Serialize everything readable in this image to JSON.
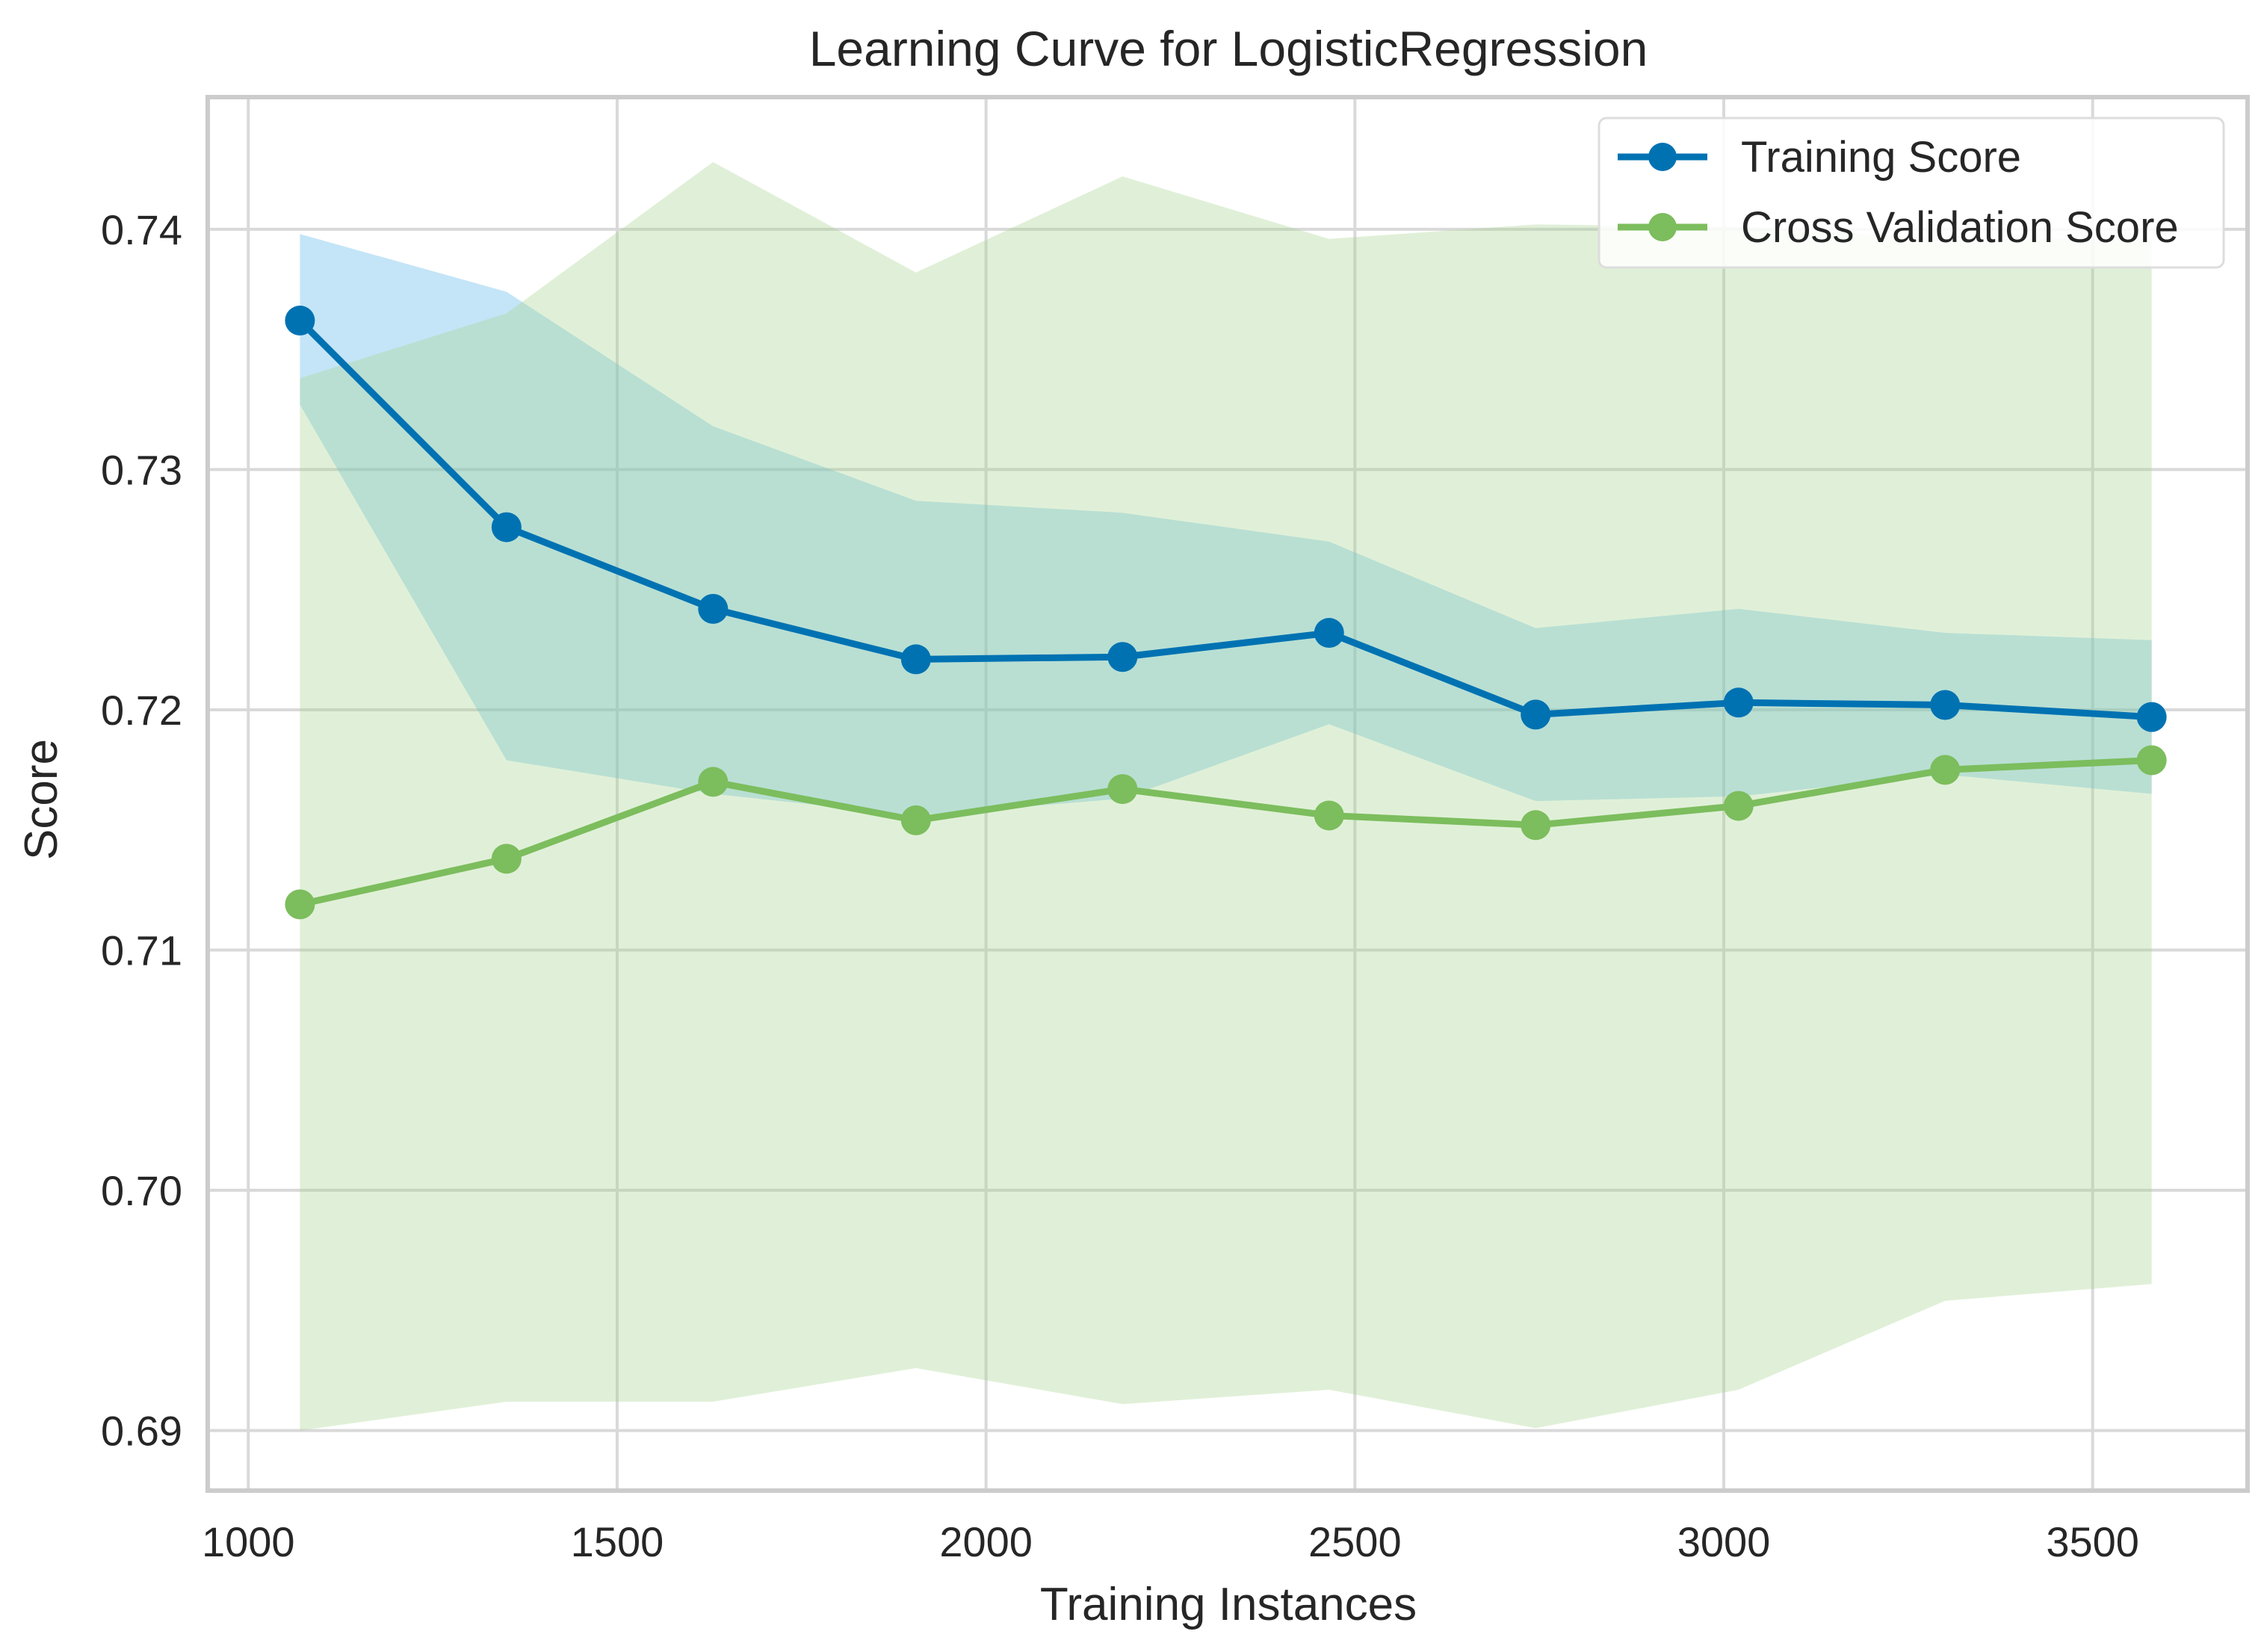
{
  "chart_data": {
    "type": "line",
    "title": "Learning Curve for LogisticRegression",
    "xlabel": "Training Instances",
    "ylabel": "Score",
    "xlim": [
      945,
      3710
    ],
    "ylim": [
      0.6875,
      0.7455
    ],
    "xticks": [
      1000,
      1500,
      2000,
      2500,
      3000,
      3500
    ],
    "xtick_labels": [
      "1000",
      "1500",
      "2000",
      "2500",
      "3000",
      "3500"
    ],
    "yticks": [
      0.69,
      0.7,
      0.71,
      0.72,
      0.73,
      0.74
    ],
    "ytick_labels": [
      "0.69",
      "0.70",
      "0.71",
      "0.72",
      "0.73",
      "0.74"
    ],
    "grid": true,
    "legend_position": "top-right",
    "x": [
      1070,
      1350,
      1630,
      1905,
      2185,
      2465,
      2745,
      3020,
      3300,
      3580
    ],
    "series": [
      {
        "name": "Training Score",
        "color": "#0072b2",
        "band_color": "#56b4e9",
        "values": [
          0.7362,
          0.7276,
          0.7242,
          0.7221,
          0.7222,
          0.7232,
          0.7198,
          0.7203,
          0.7202,
          0.7197
        ],
        "lower": [
          0.7327,
          0.7179,
          0.7165,
          0.7156,
          0.7163,
          0.7194,
          0.7162,
          0.7164,
          0.7173,
          0.7165
        ],
        "upper": [
          0.7398,
          0.7374,
          0.7318,
          0.7287,
          0.7282,
          0.727,
          0.7234,
          0.7242,
          0.7232,
          0.7229
        ]
      },
      {
        "name": "Cross Validation Score",
        "color": "#7cbd5d",
        "band_color": "#a6d48f",
        "values": [
          0.7119,
          0.7138,
          0.717,
          0.7154,
          0.7167,
          0.7156,
          0.7152,
          0.716,
          0.7175,
          0.7179
        ],
        "lower": [
          0.69,
          0.6912,
          0.6912,
          0.6926,
          0.6911,
          0.6917,
          0.6901,
          0.6917,
          0.6954,
          0.6961
        ],
        "upper": [
          0.7338,
          0.7365,
          0.7428,
          0.7382,
          0.7422,
          0.7396,
          0.7402,
          0.7401,
          0.7396,
          0.7396
        ]
      }
    ]
  }
}
